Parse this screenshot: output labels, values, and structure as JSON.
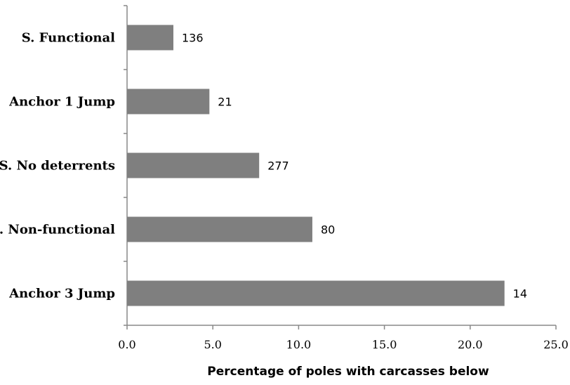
{
  "chart_data": {
    "type": "bar",
    "orientation": "horizontal",
    "categories": [
      "S. Functional",
      "Anchor 1 Jump",
      "S. No deterrents",
      "S. Non-functional",
      "Anchor 3 Jump"
    ],
    "values": [
      2.7,
      4.8,
      7.7,
      10.8,
      22.0
    ],
    "data_labels": [
      "136",
      "21",
      "277",
      "80",
      "14"
    ],
    "xlabel": "Percentage of poles with carcasses below",
    "ylabel": "",
    "xlim": [
      0,
      25
    ],
    "x_ticks": [
      "0.0",
      "5.0",
      "10.0",
      "15.0",
      "20.0",
      "25.0"
    ],
    "grid": false,
    "colors": {
      "bar": "#7f7f7f",
      "axis": "#888888"
    }
  }
}
